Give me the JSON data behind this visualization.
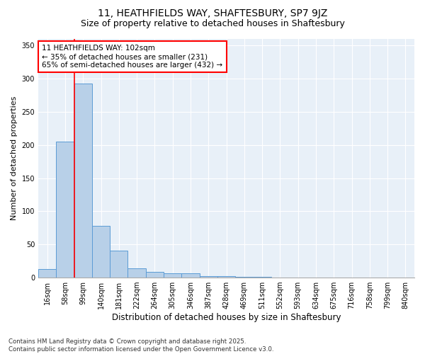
{
  "title1": "11, HEATHFIELDS WAY, SHAFTESBURY, SP7 9JZ",
  "title2": "Size of property relative to detached houses in Shaftesbury",
  "xlabel": "Distribution of detached houses by size in Shaftesbury",
  "ylabel": "Number of detached properties",
  "categories": [
    "16sqm",
    "58sqm",
    "99sqm",
    "140sqm",
    "181sqm",
    "222sqm",
    "264sqm",
    "305sqm",
    "346sqm",
    "387sqm",
    "428sqm",
    "469sqm",
    "511sqm",
    "552sqm",
    "593sqm",
    "634sqm",
    "675sqm",
    "716sqm",
    "758sqm",
    "799sqm",
    "840sqm"
  ],
  "values": [
    13,
    205,
    293,
    78,
    41,
    14,
    9,
    6,
    6,
    2,
    2,
    1,
    1,
    0,
    0,
    0,
    0,
    0,
    0,
    0,
    0
  ],
  "bar_color": "#b8d0e8",
  "bar_edge_color": "#5b9bd5",
  "bg_color": "#e8f0f8",
  "red_line_index": 2,
  "annotation_line1": "11 HEATHFIELDS WAY: 102sqm",
  "annotation_line2": "← 35% of detached houses are smaller (231)",
  "annotation_line3": "65% of semi-detached houses are larger (432) →",
  "annotation_box_color": "white",
  "annotation_box_edge_color": "red",
  "ylim": [
    0,
    360
  ],
  "yticks": [
    0,
    50,
    100,
    150,
    200,
    250,
    300,
    350
  ],
  "footnote1": "Contains HM Land Registry data © Crown copyright and database right 2025.",
  "footnote2": "Contains public sector information licensed under the Open Government Licence v3.0.",
  "title1_fontsize": 10,
  "title2_fontsize": 9,
  "xlabel_fontsize": 8.5,
  "ylabel_fontsize": 8,
  "tick_fontsize": 7,
  "annot_fontsize": 7.5
}
